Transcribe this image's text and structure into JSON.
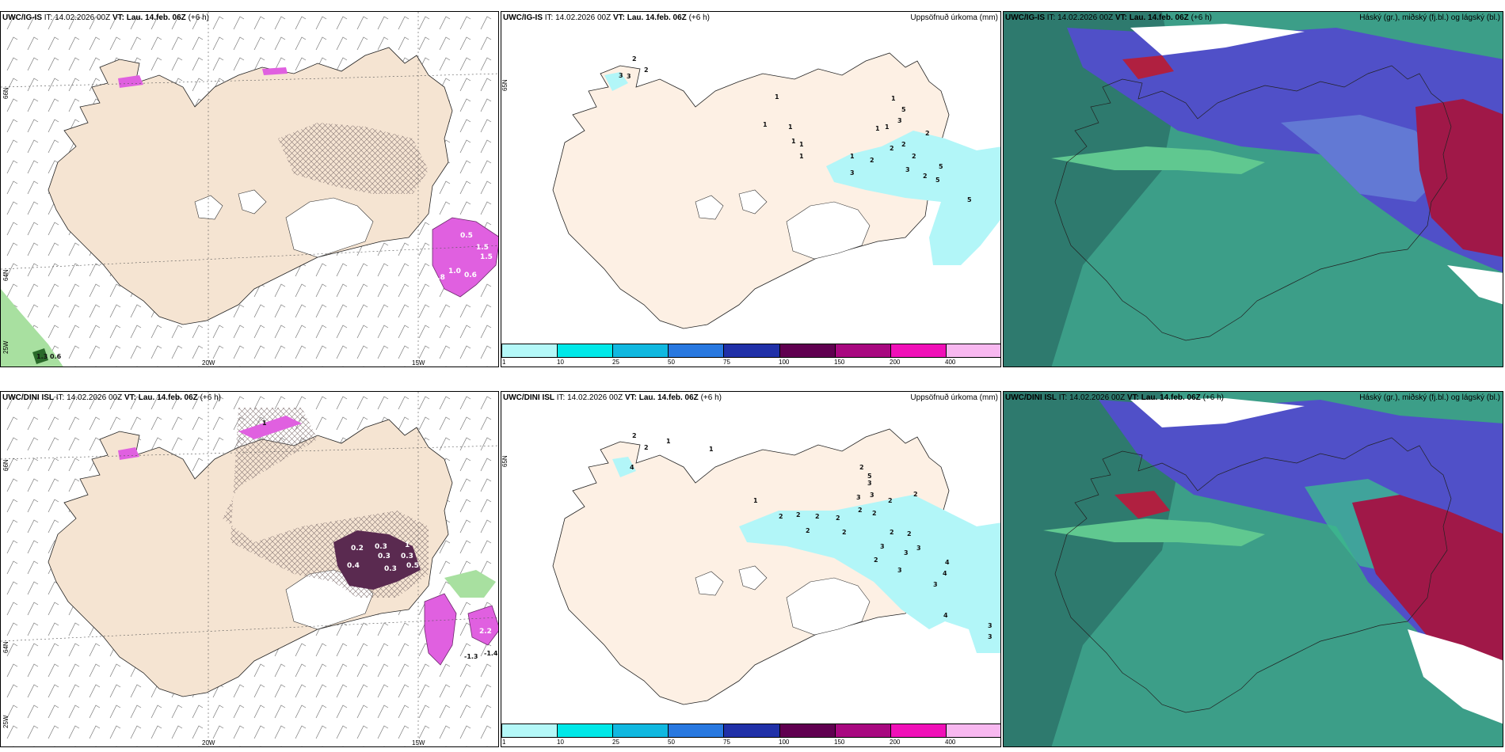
{
  "row1": {
    "wind": {
      "model": "UWC/IG-IS",
      "it_label": "IT:",
      "it_value": "14.02.2026 00Z",
      "vt_label": "VT:",
      "vt_value": "Lau. 14.feb. 06Z",
      "offset": "(+6 h)",
      "lat_labels": [
        "66N",
        "64N"
      ],
      "lon_labels": [
        "25W",
        "20W",
        "15W"
      ],
      "contour_labels": [
        "0.5",
        "1.5",
        "1.5",
        "1.0",
        "0.6",
        "0.8",
        "1.3",
        "0.6"
      ]
    },
    "precip": {
      "model": "UWC/IG-IS",
      "it_label": "IT:",
      "it_value": "14.02.2026 00Z",
      "vt_label": "VT:",
      "vt_value": "Lau. 14.feb. 06Z",
      "offset": "(+6 h)",
      "title": "Uppsöfnuð úrkoma (mm)",
      "lat_label": "65N",
      "point_values": [
        "2",
        "2",
        "3",
        "3",
        "1",
        "1",
        "1",
        "1",
        "1",
        "1",
        "1",
        "5",
        "3",
        "2",
        "2",
        "2",
        "2",
        "2",
        "3",
        "3",
        "2",
        "5",
        "5",
        "5",
        "1",
        "1",
        "1"
      ]
    },
    "cloud": {
      "model": "UWC/IG-IS",
      "it_label": "IT:",
      "it_value": "14.02.2026 00Z",
      "vt_label": "VT:",
      "vt_value": "Lau. 14.feb. 06Z",
      "offset": "(+6 h)",
      "title": "Háský (gr.), miðský (fj.bl.) og lágský (bl.)"
    }
  },
  "row2": {
    "wind": {
      "model": "UWC/DINI ISL",
      "it_label": "IT:",
      "it_value": "14.02.2026 00Z",
      "vt_label": "VT:",
      "vt_value": "Lau. 14.feb. 06Z",
      "offset": "(+6",
      "offset_tail": "h)",
      "lat_labels": [
        "66N",
        "64N"
      ],
      "lon_labels": [
        "25W",
        "20W",
        "15W"
      ],
      "contour_labels": [
        "1",
        "0.2",
        "0.3",
        "0.3",
        "0.4",
        "0.3",
        "0.3",
        "0.5",
        "1",
        "2.2",
        "-1.3",
        "-1.4"
      ]
    },
    "precip": {
      "model": "UWC/DINI ISL",
      "it_label": "IT:",
      "it_value": "14.02.2026 00Z",
      "vt_label": "VT:",
      "vt_value": "Lau. 14.feb. 06Z",
      "offset": "(+6 h)",
      "title": "Uppsöfnuð úrkoma (mm)",
      "lat_label": "65N",
      "point_values": [
        "2",
        "2",
        "1",
        "1",
        "4",
        "1",
        "2",
        "2",
        "2",
        "2",
        "2",
        "2",
        "2",
        "3",
        "3",
        "3",
        "2",
        "2",
        "5",
        "2",
        "2",
        "2",
        "3",
        "3",
        "3",
        "2",
        "3",
        "4",
        "4",
        "4",
        "3",
        "3",
        "3",
        "2"
      ]
    },
    "cloud": {
      "model": "UWC/DINI ISL",
      "it_label": "IT:",
      "it_value": "14.02.2026 00Z",
      "vt_label": "VT:",
      "vt_value": "Lau. 14.feb. 06Z",
      "offset": "(+6 h)",
      "title": "Háský (gr.), miðský (fj.bl.) og lágský (bl.)"
    }
  },
  "colorbar": {
    "ticks": [
      "1",
      "10",
      "25",
      "50",
      "75",
      "100",
      "150",
      "200",
      "400"
    ],
    "colors": [
      "#b4f8f8",
      "#00e8e8",
      "#10b8e0",
      "#2878e0",
      "#2030a8",
      "#600050",
      "#a80880",
      "#f010b8",
      "#f8b8f0"
    ]
  },
  "colors": {
    "land": "#f5e4d2",
    "precip_land": "#fdf0e4",
    "shower_cyan": "#b2f6f8",
    "precip_magenta": "#e060e0",
    "precip_dark": "#5a2a50",
    "cloud_low": "#3c9e88",
    "cloud_mid": "#5050c8",
    "cloud_high": "#a01848"
  }
}
